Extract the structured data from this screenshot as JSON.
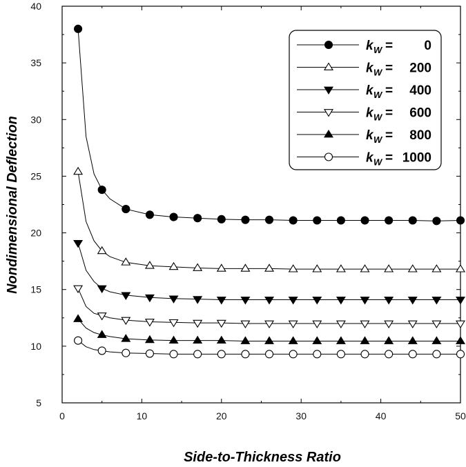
{
  "chart_data": {
    "type": "line",
    "title": "",
    "xlabel": "Side-to-Thickness  Ratio",
    "ylabel": "Nondimensional  Deflection",
    "xlim": [
      0,
      50
    ],
    "ylim": [
      5,
      40
    ],
    "xticks": [
      0,
      10,
      20,
      30,
      40,
      50
    ],
    "yticks": [
      5,
      10,
      15,
      20,
      25,
      30,
      35,
      40
    ],
    "x_minor_step": 5,
    "y_minor_step": 2.5,
    "legend_placement": "top-right",
    "x": [
      2,
      5,
      8,
      11,
      14,
      17,
      20,
      23,
      26,
      29,
      32,
      35,
      38,
      41,
      44,
      47,
      50
    ],
    "series": [
      {
        "name": "0",
        "legend_prefix": "k",
        "legend_subscript": "W",
        "legend_eq": "=",
        "marker": "filled-circle",
        "values": [
          38.0,
          23.8,
          22.1,
          21.6,
          21.4,
          21.3,
          21.2,
          21.15,
          21.15,
          21.1,
          21.1,
          21.1,
          21.1,
          21.1,
          21.1,
          21.05,
          21.1
        ],
        "curve": [
          [
            2,
            38.0
          ],
          [
            3,
            28.5
          ],
          [
            4,
            25.2
          ],
          [
            5,
            23.8
          ],
          [
            6,
            23.0
          ],
          [
            8,
            22.1
          ],
          [
            11,
            21.6
          ],
          [
            14,
            21.4
          ],
          [
            17,
            21.3
          ],
          [
            20,
            21.2
          ],
          [
            23,
            21.15
          ],
          [
            26,
            21.15
          ],
          [
            29,
            21.1
          ],
          [
            32,
            21.1
          ],
          [
            35,
            21.1
          ],
          [
            38,
            21.1
          ],
          [
            41,
            21.1
          ],
          [
            44,
            21.1
          ],
          [
            47,
            21.05
          ],
          [
            50,
            21.1
          ]
        ]
      },
      {
        "name": "200",
        "legend_prefix": "k",
        "legend_subscript": "W",
        "legend_eq": "=",
        "marker": "open-triangle-up",
        "values": [
          25.4,
          18.4,
          17.4,
          17.1,
          17.0,
          16.9,
          16.85,
          16.85,
          16.85,
          16.8,
          16.8,
          16.8,
          16.8,
          16.8,
          16.8,
          16.8,
          16.8
        ],
        "curve": [
          [
            2,
            25.4
          ],
          [
            3,
            21.0
          ],
          [
            4,
            19.3
          ],
          [
            5,
            18.4
          ],
          [
            6,
            17.9
          ],
          [
            8,
            17.4
          ],
          [
            11,
            17.1
          ],
          [
            14,
            17.0
          ],
          [
            17,
            16.9
          ],
          [
            20,
            16.85
          ],
          [
            23,
            16.85
          ],
          [
            26,
            16.85
          ],
          [
            29,
            16.8
          ],
          [
            32,
            16.8
          ],
          [
            35,
            16.8
          ],
          [
            38,
            16.8
          ],
          [
            41,
            16.8
          ],
          [
            44,
            16.8
          ],
          [
            47,
            16.8
          ],
          [
            50,
            16.8
          ]
        ]
      },
      {
        "name": "400",
        "legend_prefix": "k",
        "legend_subscript": "W",
        "legend_eq": "=",
        "marker": "filled-triangle-down",
        "values": [
          19.1,
          15.1,
          14.5,
          14.3,
          14.2,
          14.15,
          14.1,
          14.1,
          14.1,
          14.1,
          14.1,
          14.1,
          14.1,
          14.1,
          14.1,
          14.1,
          14.1
        ],
        "curve": [
          [
            2,
            19.1
          ],
          [
            3,
            16.7
          ],
          [
            4,
            15.7
          ],
          [
            5,
            15.1
          ],
          [
            6,
            14.8
          ],
          [
            8,
            14.5
          ],
          [
            11,
            14.3
          ],
          [
            14,
            14.2
          ],
          [
            17,
            14.15
          ],
          [
            20,
            14.1
          ],
          [
            23,
            14.1
          ],
          [
            26,
            14.1
          ],
          [
            29,
            14.1
          ],
          [
            32,
            14.1
          ],
          [
            35,
            14.1
          ],
          [
            38,
            14.1
          ],
          [
            41,
            14.1
          ],
          [
            44,
            14.1
          ],
          [
            47,
            14.1
          ],
          [
            50,
            14.1
          ]
        ]
      },
      {
        "name": "600",
        "legend_prefix": "k",
        "legend_subscript": "W",
        "legend_eq": "=",
        "marker": "open-triangle-down",
        "values": [
          15.1,
          12.7,
          12.3,
          12.15,
          12.1,
          12.05,
          12.05,
          12.0,
          12.0,
          12.0,
          12.0,
          12.0,
          12.0,
          12.0,
          12.0,
          12.0,
          12.0
        ],
        "curve": [
          [
            2,
            15.1
          ],
          [
            3,
            13.5
          ],
          [
            4,
            12.9
          ],
          [
            5,
            12.7
          ],
          [
            6,
            12.5
          ],
          [
            8,
            12.3
          ],
          [
            11,
            12.15
          ],
          [
            14,
            12.1
          ],
          [
            17,
            12.05
          ],
          [
            20,
            12.05
          ],
          [
            23,
            12.0
          ],
          [
            26,
            12.0
          ],
          [
            29,
            12.0
          ],
          [
            32,
            12.0
          ],
          [
            35,
            12.0
          ],
          [
            38,
            12.0
          ],
          [
            41,
            12.0
          ],
          [
            44,
            12.0
          ],
          [
            47,
            12.0
          ],
          [
            50,
            12.0
          ]
        ]
      },
      {
        "name": "800",
        "legend_prefix": "k",
        "legend_subscript": "W",
        "legend_eq": "=",
        "marker": "filled-triangle-up",
        "values": [
          12.4,
          11.0,
          10.65,
          10.55,
          10.5,
          10.5,
          10.5,
          10.45,
          10.45,
          10.45,
          10.45,
          10.45,
          10.45,
          10.45,
          10.45,
          10.45,
          10.45
        ],
        "curve": [
          [
            2,
            12.4
          ],
          [
            3,
            11.6
          ],
          [
            4,
            11.2
          ],
          [
            5,
            11.0
          ],
          [
            6,
            10.85
          ],
          [
            8,
            10.65
          ],
          [
            11,
            10.55
          ],
          [
            14,
            10.5
          ],
          [
            17,
            10.5
          ],
          [
            20,
            10.5
          ],
          [
            23,
            10.45
          ],
          [
            26,
            10.45
          ],
          [
            29,
            10.45
          ],
          [
            32,
            10.45
          ],
          [
            35,
            10.45
          ],
          [
            38,
            10.45
          ],
          [
            41,
            10.45
          ],
          [
            44,
            10.45
          ],
          [
            47,
            10.45
          ],
          [
            50,
            10.45
          ]
        ]
      },
      {
        "name": "1000",
        "legend_prefix": "k",
        "legend_subscript": "W",
        "legend_eq": "=",
        "marker": "open-circle",
        "values": [
          10.5,
          9.6,
          9.4,
          9.35,
          9.3,
          9.3,
          9.3,
          9.3,
          9.3,
          9.3,
          9.3,
          9.3,
          9.3,
          9.3,
          9.3,
          9.3,
          9.3
        ],
        "curve": [
          [
            2,
            10.5
          ],
          [
            3,
            9.95
          ],
          [
            4,
            9.7
          ],
          [
            5,
            9.6
          ],
          [
            6,
            9.5
          ],
          [
            8,
            9.4
          ],
          [
            11,
            9.35
          ],
          [
            14,
            9.3
          ],
          [
            17,
            9.3
          ],
          [
            20,
            9.3
          ],
          [
            23,
            9.3
          ],
          [
            26,
            9.3
          ],
          [
            29,
            9.3
          ],
          [
            32,
            9.3
          ],
          [
            35,
            9.3
          ],
          [
            38,
            9.3
          ],
          [
            41,
            9.3
          ],
          [
            44,
            9.3
          ],
          [
            47,
            9.3
          ],
          [
            50,
            9.3
          ]
        ]
      }
    ]
  }
}
